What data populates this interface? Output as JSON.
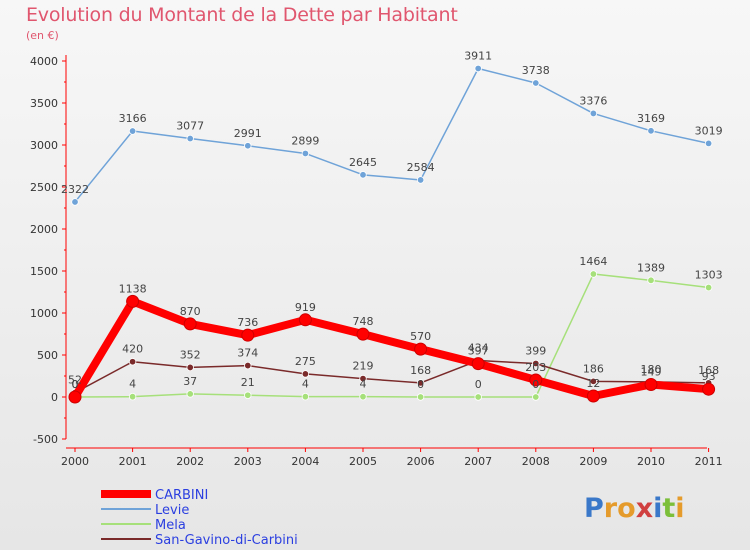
{
  "header": {
    "title": "Evolution du Montant de la Dette par Habitant",
    "subtitle": "(en €)"
  },
  "logo": {
    "text": "Proxiti"
  },
  "chart_data": {
    "type": "line",
    "x": [
      "2000",
      "2001",
      "2002",
      "2003",
      "2004",
      "2005",
      "2006",
      "2007",
      "2008",
      "2009",
      "2010",
      "2011"
    ],
    "ylim": [
      -500,
      4000
    ],
    "yticks": [
      -500,
      0,
      500,
      1000,
      1500,
      2000,
      2500,
      3000,
      3500,
      4000
    ],
    "grid": false,
    "legend": "bottom-left",
    "series": [
      {
        "name": "CARBINI",
        "color": "#ff0000",
        "values": [
          0,
          1138,
          870,
          736,
          919,
          748,
          570,
          397,
          203,
          12,
          149,
          93
        ],
        "labels": [
          "0",
          "1138",
          "870",
          "736",
          "919",
          "748",
          "570",
          "397",
          "203",
          "12",
          "149",
          "93"
        ]
      },
      {
        "name": "Levie",
        "color": "#6fa3d8",
        "values": [
          2322,
          3166,
          3077,
          2991,
          2899,
          2645,
          2584,
          3911,
          3738,
          3376,
          3169,
          3019
        ],
        "labels": [
          "2322",
          "3166",
          "3077",
          "2991",
          "2899",
          "2645",
          "2584",
          "3911",
          "3738",
          "3376",
          "3169",
          "3019"
        ]
      },
      {
        "name": "Mela",
        "color": "#a6e07a",
        "values": [
          0,
          4,
          37,
          21,
          4,
          4,
          0,
          0,
          0,
          1464,
          1389,
          1303
        ],
        "labels": [
          "0",
          "4",
          "37",
          "21",
          "4",
          "4",
          "0",
          "0",
          "0",
          "1464",
          "1389",
          "1303"
        ]
      },
      {
        "name": "San-Gavino-di-Carbini",
        "color": "#7a2a2a",
        "values": [
          52,
          420,
          352,
          374,
          275,
          219,
          168,
          434,
          399,
          186,
          180,
          168
        ],
        "labels": [
          "52",
          "420",
          "352",
          "374",
          "275",
          "219",
          "168",
          "434",
          "399",
          "186",
          "180",
          "168"
        ]
      }
    ]
  }
}
